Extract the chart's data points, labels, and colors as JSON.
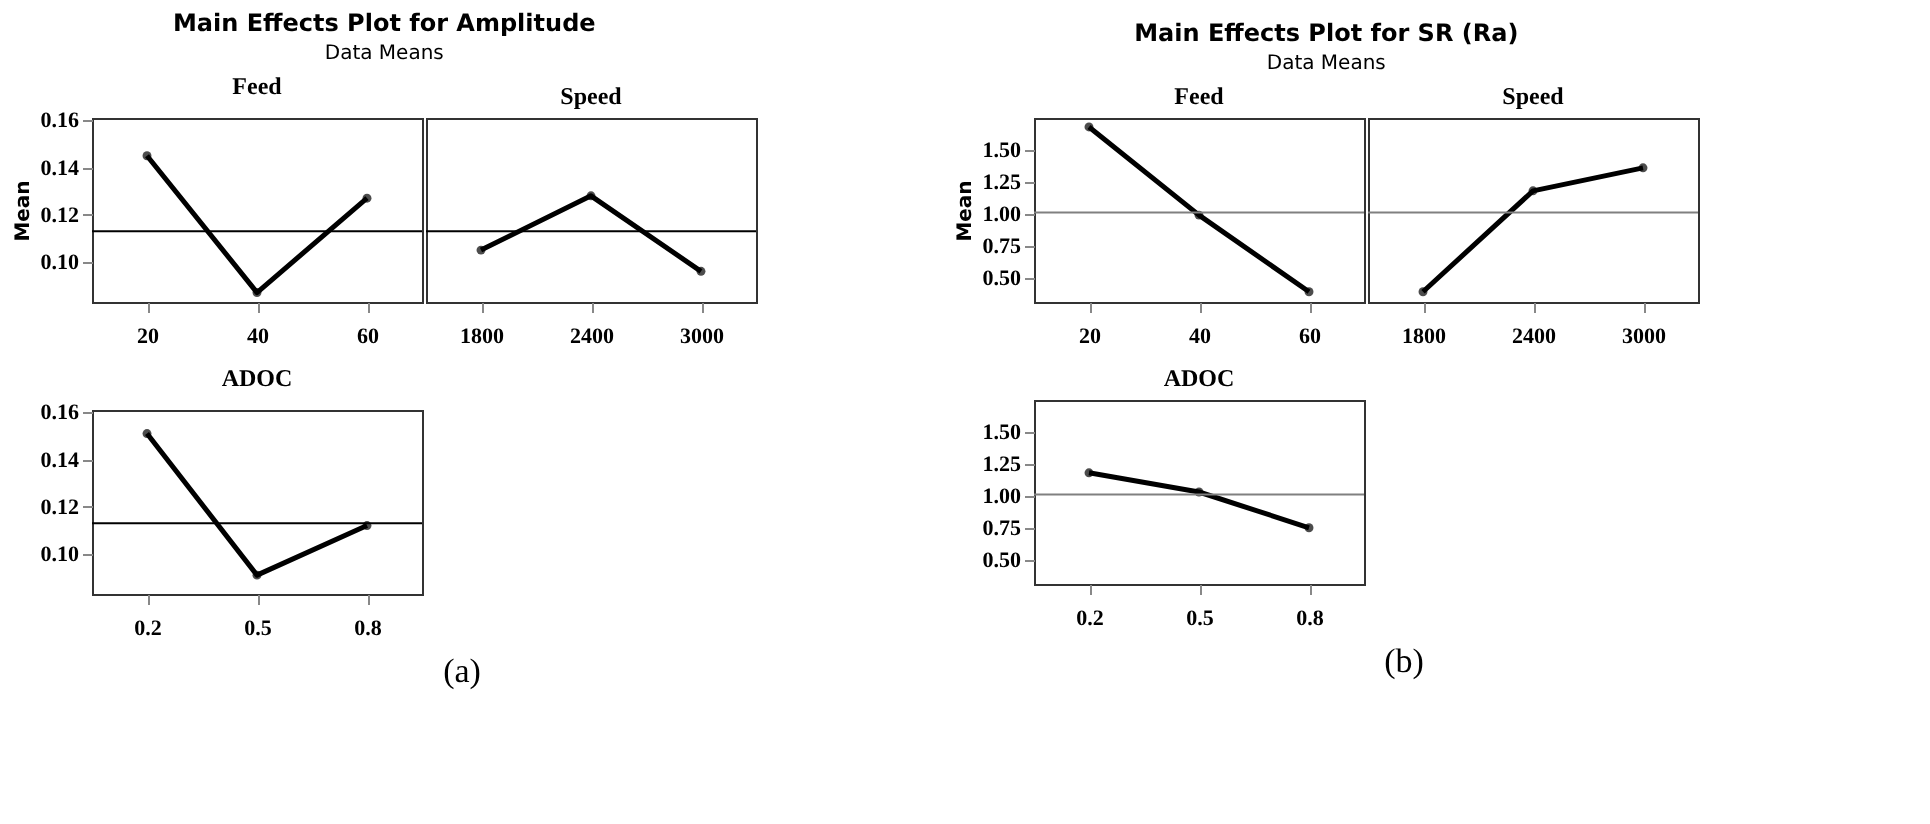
{
  "chart_data": [
    {
      "type": "line",
      "title": "Feed",
      "ylabel": "Mean",
      "annotations": [
        "Main Effects Plot for Amplitude",
        "Data Means",
        "(a)"
      ],
      "categories": [
        "20",
        "40",
        "60"
      ],
      "values": [
        0.145,
        0.087,
        0.127
      ],
      "color": "#000000",
      "marker": "circle",
      "ylim": [
        0.083,
        0.161
      ],
      "yticks": [
        {
          "value": 0.1,
          "label": "0.10"
        },
        {
          "value": 0.12,
          "label": "0.12"
        },
        {
          "value": 0.14,
          "label": "0.14"
        },
        {
          "value": 0.16,
          "label": "0.16"
        }
      ],
      "ref_lines": [
        {
          "axis": "y",
          "value": 0.113,
          "color": "#000000"
        }
      ]
    },
    {
      "type": "line",
      "title": "Speed",
      "categories": [
        "1800",
        "2400",
        "3000"
      ],
      "values": [
        0.105,
        0.128,
        0.096
      ],
      "color": "#000000",
      "marker": "circle",
      "ylim": [
        0.083,
        0.161
      ],
      "tick_labels": "x",
      "ref_lines": [
        {
          "axis": "y",
          "value": 0.113,
          "color": "#000000"
        }
      ]
    },
    {
      "type": "line",
      "title": "ADOC",
      "categories": [
        "0.2",
        "0.5",
        "0.8"
      ],
      "values": [
        0.151,
        0.091,
        0.112
      ],
      "color": "#000000",
      "marker": "circle",
      "ylim": [
        0.083,
        0.161
      ],
      "yticks": [
        {
          "value": 0.1,
          "label": "0.10"
        },
        {
          "value": 0.12,
          "label": "0.12"
        },
        {
          "value": 0.14,
          "label": "0.14"
        },
        {
          "value": 0.16,
          "label": "0.16"
        }
      ],
      "ref_lines": [
        {
          "axis": "y",
          "value": 0.113,
          "color": "#000000"
        }
      ]
    },
    {
      "type": "line",
      "title": "Feed",
      "ylabel": "Mean",
      "annotations": [
        "Main Effects Plot for SR (Ra)",
        "Data Means",
        "(b)"
      ],
      "categories": [
        "20",
        "40",
        "60"
      ],
      "values": [
        1.68,
        0.99,
        0.39
      ],
      "color": "#000000",
      "marker": "circle",
      "ylim": [
        0.31,
        1.75
      ],
      "yticks": [
        {
          "value": 0.5,
          "label": "0.50"
        },
        {
          "value": 0.75,
          "label": "0.75"
        },
        {
          "value": 1.0,
          "label": "1.00"
        },
        {
          "value": 1.25,
          "label": "1.25"
        },
        {
          "value": 1.5,
          "label": "1.50"
        }
      ],
      "ref_lines": [
        {
          "axis": "y",
          "value": 1.01,
          "color": "#808080"
        }
      ]
    },
    {
      "type": "line",
      "title": "Speed",
      "categories": [
        "1800",
        "2400",
        "3000"
      ],
      "values": [
        0.39,
        1.18,
        1.36
      ],
      "color": "#000000",
      "marker": "circle",
      "ylim": [
        0.31,
        1.75
      ],
      "tick_labels": "x",
      "ref_lines": [
        {
          "axis": "y",
          "value": 1.01,
          "color": "#808080"
        }
      ]
    },
    {
      "type": "line",
      "title": "ADOC",
      "categories": [
        "0.2",
        "0.5",
        "0.8"
      ],
      "values": [
        1.18,
        1.03,
        0.75
      ],
      "color": "#000000",
      "marker": "circle",
      "ylim": [
        0.31,
        1.75
      ],
      "yticks": [
        {
          "value": 0.5,
          "label": "0.50"
        },
        {
          "value": 0.75,
          "label": "0.75"
        },
        {
          "value": 1.0,
          "label": "1.00"
        },
        {
          "value": 1.25,
          "label": "1.25"
        },
        {
          "value": 1.5,
          "label": "1.50"
        }
      ],
      "ref_lines": [
        {
          "axis": "y",
          "value": 1.01,
          "color": "#808080"
        }
      ]
    }
  ]
}
